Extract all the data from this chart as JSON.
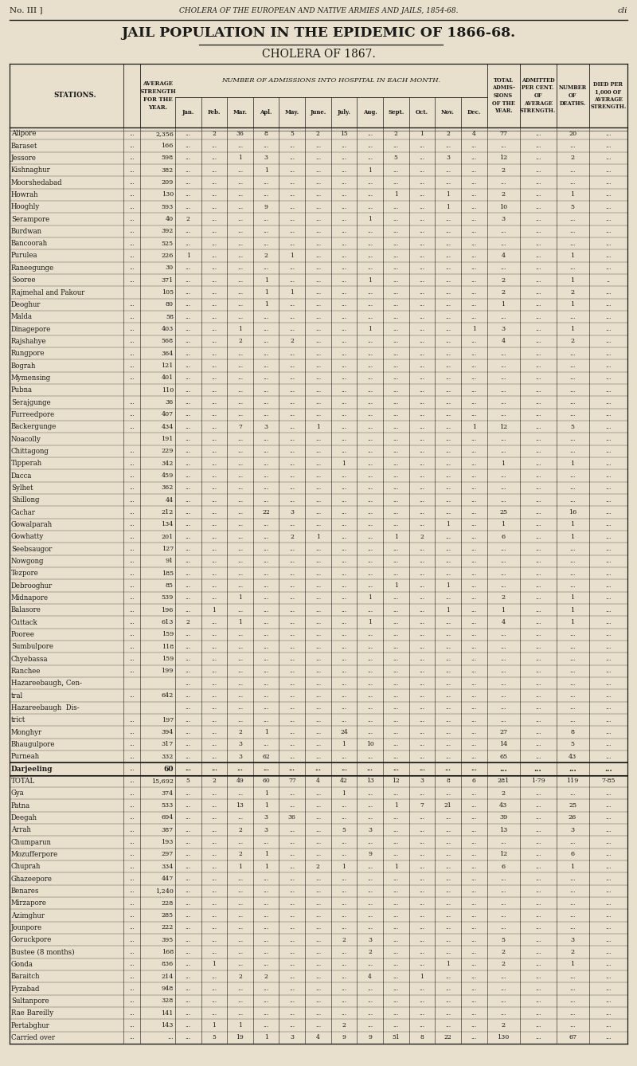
{
  "page_header_left": "No. III ]",
  "page_header_center": "CHOLERA OF THE EUROPEAN AND NATIVE ARMIES AND JAILS, 1854-68.",
  "page_header_right": "cli",
  "main_title": "JAIL POPULATION IN THE EPIDEMIC OF 1866-68.",
  "sub_title": "CHOLERA OF 1867.",
  "months": [
    "Jan.",
    "Feb.",
    "Mar.",
    "Apl.",
    "May.",
    "June.",
    "July.",
    "Aug.",
    "Sept.",
    "Oct.",
    "Nov.",
    "Dec."
  ],
  "rows": [
    [
      "Alipore",
      "...",
      "2,356",
      "...",
      "2",
      "36",
      "8",
      "5",
      "2",
      "15",
      "...",
      "2",
      "1",
      "2",
      "4",
      "77",
      "...",
      "20",
      "..."
    ],
    [
      "Baraset",
      "...",
      "166",
      "...",
      "...",
      "...",
      "...",
      "...",
      "...",
      "...",
      "...",
      "...",
      "...",
      "...",
      "...",
      "...",
      "...",
      "...",
      "..."
    ],
    [
      "Jessore",
      "...",
      "598",
      "...",
      "...",
      "1",
      "3",
      "...",
      "...",
      "...",
      "...",
      "5",
      "...",
      "3",
      "...",
      "12",
      "...",
      "2",
      "..."
    ],
    [
      "Kishnaghur",
      "...",
      "382",
      "...",
      "...",
      "...",
      "1",
      "...",
      "...",
      "...",
      "1",
      "...",
      "...",
      "...",
      "...",
      "2",
      "...",
      "...",
      "..."
    ],
    [
      "Moorshedabad",
      "...",
      "209",
      "...",
      "...",
      "...",
      "...",
      "...",
      "...",
      "...",
      "...",
      "...",
      "...",
      "...",
      "...",
      "...",
      "...",
      "...",
      "..."
    ],
    [
      "Howrah",
      "...",
      "130",
      "...",
      "...",
      "...",
      "...",
      "...",
      "...",
      "...",
      "...",
      "1",
      "...",
      "1",
      "...",
      "2",
      "...",
      "1",
      "..."
    ],
    [
      "Hooghly",
      "...",
      "593",
      "...",
      "...",
      "...",
      "9",
      "...",
      "...",
      "...",
      "...",
      "...",
      "...",
      "1",
      "...",
      "10",
      "...",
      "5",
      "..."
    ],
    [
      "Serampore",
      "...",
      "40",
      "2",
      "...",
      "...",
      "...",
      "...",
      "...",
      "...",
      "1",
      "...",
      "...",
      "...",
      "...",
      "3",
      "...",
      "...",
      "..."
    ],
    [
      "Burdwan",
      "...",
      "392",
      "...",
      "...",
      "...",
      "...",
      "...",
      "...",
      "...",
      "...",
      "...",
      "...",
      "...",
      "...",
      "...",
      "...",
      "...",
      "..."
    ],
    [
      "Bancoorah",
      "...",
      "525",
      "...",
      "...",
      "...",
      "...",
      "...",
      "...",
      "...",
      "...",
      "...",
      "...",
      "...",
      "...",
      "...",
      "...",
      "...",
      "..."
    ],
    [
      "Purulea",
      "...",
      "226",
      "1",
      "...",
      "...",
      "2",
      "1",
      "...",
      "...",
      "...",
      "...",
      "...",
      "...",
      "...",
      "4",
      "...",
      "1",
      "..."
    ],
    [
      "Raneegunge",
      "...",
      "30",
      "...",
      "...",
      "...",
      "...",
      "...",
      "...",
      "...",
      "...",
      "...",
      "...",
      "...",
      "...",
      "...",
      "...",
      "...",
      "..."
    ],
    [
      "Sooree",
      "...",
      "371",
      "...",
      "...",
      "...",
      "1",
      "...",
      "...",
      "...",
      "1",
      "...",
      "...",
      "...",
      "...",
      "2",
      "...",
      "1",
      ".."
    ],
    [
      "Rajmehal and Pakour",
      "",
      "105",
      "...",
      "...",
      "...",
      "1",
      "1",
      "...",
      "...",
      "...",
      "...",
      "...",
      "...",
      "...",
      "2",
      "...",
      "2",
      "..."
    ],
    [
      "Deoghur",
      "...",
      "80",
      "...",
      "...",
      "...",
      "1",
      "...",
      "...",
      "...",
      "...",
      "...",
      "...",
      "...",
      "...",
      "1",
      "...",
      "1",
      "..."
    ],
    [
      "Malda",
      "...",
      "58",
      "...",
      "...",
      "...",
      "...",
      "...",
      "...",
      "...",
      "...",
      "...",
      "...",
      "...",
      "...",
      "...",
      "...",
      "...",
      "..."
    ],
    [
      "Dinagepore",
      "...",
      "403",
      "...",
      "...",
      "1",
      "...",
      "...",
      "...",
      "...",
      "1",
      "...",
      "...",
      "...",
      "1",
      "3",
      "...",
      "1",
      "..."
    ],
    [
      "Rajshahye",
      "...",
      "568",
      "...",
      "...",
      "2",
      "...",
      "2",
      "...",
      "...",
      "...",
      "...",
      "...",
      "...",
      "...",
      "4",
      "...",
      "2",
      "..."
    ],
    [
      "Rungpore",
      "...",
      "364",
      "...",
      "...",
      "...",
      "...",
      "...",
      "...",
      "...",
      "...",
      "...",
      "...",
      "...",
      "...",
      "...",
      "...",
      "...",
      "..."
    ],
    [
      "Bograh",
      "...",
      "121",
      "...",
      "...",
      "...",
      "...",
      "...",
      "...",
      "...",
      "...",
      "...",
      "...",
      "...",
      "...",
      "...",
      "...",
      "...",
      "..."
    ],
    [
      "Mymensing",
      "...",
      "401",
      "...",
      "...",
      "...",
      "...",
      "...",
      "...",
      "...",
      "...",
      "...",
      "...",
      "...",
      "...",
      "...",
      "...",
      "...",
      "..."
    ],
    [
      "Pubna",
      "",
      "110",
      "...",
      "...",
      "...",
      "...",
      "...",
      "...",
      "...",
      "...",
      "...",
      "...",
      "...",
      "...",
      "...",
      "...",
      "...",
      "..."
    ],
    [
      "Serajgunge",
      "...",
      "36",
      "...",
      "...",
      "...",
      "...",
      "...",
      "...",
      "...",
      "...",
      "...",
      "...",
      "...",
      "...",
      "...",
      "...",
      "...",
      "..."
    ],
    [
      "Furreedpore",
      "...",
      "407",
      "...",
      "...",
      "...",
      "...",
      "...",
      "...",
      "...",
      "...",
      "...",
      "...",
      "...",
      "...",
      "...",
      "...",
      "...",
      "..."
    ],
    [
      "Backergunge",
      "...",
      "434",
      "...",
      "...",
      "7",
      "3",
      "...",
      "1",
      "...",
      "...",
      "...",
      "...",
      "...",
      "1",
      "12",
      "...",
      "5",
      "..."
    ],
    [
      "Noacolly",
      "",
      "191",
      "...",
      "...",
      "...",
      "...",
      "...",
      "...",
      "...",
      "...",
      "...",
      "...",
      "...",
      "...",
      "...",
      "...",
      "...",
      "..."
    ],
    [
      "Chittagong",
      "...",
      "229",
      "...",
      "...",
      "...",
      "...",
      "...",
      "...",
      "...",
      "...",
      "...",
      "...",
      "...",
      "...",
      "...",
      "...",
      "...",
      "..."
    ],
    [
      "Tipperah",
      "...",
      "342",
      "...",
      "...",
      "...",
      "...",
      "...",
      "...",
      "1",
      "...",
      "...",
      "...",
      "...",
      "...",
      "1",
      "...",
      "1",
      "..."
    ],
    [
      "Dacca",
      "...",
      "459",
      "...",
      "...",
      "...",
      "...",
      "...",
      "...",
      "...",
      "...",
      "...",
      "...",
      "...",
      "...",
      "...",
      "...",
      "...",
      "..."
    ],
    [
      "Sylhet",
      "...",
      "362",
      "...",
      "...",
      "...",
      "...",
      "...",
      "...",
      "...",
      "...",
      "...",
      "...",
      "...",
      "...",
      "...",
      "...",
      "...",
      "..."
    ],
    [
      "Shillong",
      "...",
      "44",
      "...",
      "...",
      "...",
      "...",
      "...",
      "...",
      "...",
      "...",
      "...",
      "...",
      "...",
      "...",
      "...",
      "...",
      "...",
      "..."
    ],
    [
      "Cachar",
      "...",
      "212",
      "...",
      "...",
      "...",
      "22",
      "3",
      "...",
      "...",
      "...",
      "...",
      "...",
      "...",
      "...",
      "25",
      "...",
      "16",
      "..."
    ],
    [
      "Gowalparah",
      "...",
      "134",
      "...",
      "...",
      "...",
      "...",
      "...",
      "...",
      "...",
      "...",
      "...",
      "...",
      "1",
      "...",
      "1",
      "...",
      "1",
      "..."
    ],
    [
      "Gowhatty",
      "...",
      "201",
      "...",
      "...",
      "...",
      "...",
      "2",
      "1",
      "...",
      "...",
      "1",
      "2",
      "...",
      "...",
      "6",
      "...",
      "1",
      "..."
    ],
    [
      "Seebsaugor",
      "...",
      "127",
      "...",
      "...",
      "...",
      "...",
      "...",
      "...",
      "...",
      "...",
      "...",
      "...",
      "...",
      "...",
      "...",
      "...",
      "...",
      "..."
    ],
    [
      "Nowgong",
      "...",
      "91",
      "...",
      "...",
      "...",
      "...",
      "...",
      "...",
      "...",
      "...",
      "...",
      "...",
      "...",
      "...",
      "...",
      "...",
      "...",
      "..."
    ],
    [
      "Tezpore",
      "...",
      "185",
      "...",
      "...",
      "...",
      "...",
      "...",
      "...",
      "...",
      "...",
      "...",
      "...",
      "...",
      "...",
      "...",
      "...",
      "...",
      "..."
    ],
    [
      "Debrooghur",
      "...",
      "85",
      "...",
      "...",
      "...",
      "...",
      "...",
      "...",
      "...",
      "...",
      "1",
      "...",
      "1",
      "...",
      "...",
      "...",
      "...",
      "..."
    ],
    [
      "Midnapore",
      "...",
      "539",
      "...",
      "...",
      "1",
      "...",
      "...",
      "...",
      "...",
      "1",
      "...",
      "...",
      "...",
      "...",
      "2",
      "...",
      "1",
      "..."
    ],
    [
      "Balasore",
      "...",
      "196",
      "...",
      "1",
      "...",
      "...",
      "...",
      "...",
      "...",
      "...",
      "...",
      "...",
      "1",
      "...",
      "1",
      "...",
      "1",
      "..."
    ],
    [
      "Cuttack",
      "...",
      "613",
      "2",
      "...",
      "1",
      "...",
      "...",
      "...",
      "...",
      "1",
      "...",
      "...",
      "...",
      "...",
      "4",
      "...",
      "1",
      "..."
    ],
    [
      "Pooree",
      "...",
      "159",
      "...",
      "...",
      "...",
      "...",
      "...",
      "...",
      "...",
      "...",
      "...",
      "...",
      "...",
      "...",
      "...",
      "...",
      "...",
      "..."
    ],
    [
      "Sumbulpore",
      "...",
      "118",
      "...",
      "...",
      "...",
      "...",
      "...",
      "...",
      "...",
      "...",
      "...",
      "...",
      "...",
      "...",
      "...",
      "...",
      "...",
      "..."
    ],
    [
      "Chyebassa",
      "...",
      "159",
      "...",
      "...",
      "...",
      "...",
      "...",
      "...",
      "...",
      "...",
      "...",
      "...",
      "...",
      "...",
      "...",
      "...",
      "...",
      "..."
    ],
    [
      "Ranchee",
      "...",
      "199",
      "...",
      "...",
      "...",
      "...",
      "...",
      "...",
      "...",
      "...",
      "...",
      "...",
      "...",
      "...",
      "...",
      "...",
      "...",
      "..."
    ],
    [
      "Hazareebaugh, Cen-",
      "",
      "",
      "...",
      "...",
      "...",
      "...",
      "...",
      "...",
      "...",
      "...",
      "...",
      "...",
      "...",
      "...",
      "...",
      "...",
      "...",
      "..."
    ],
    [
      "tral",
      "...",
      "642",
      "...",
      "...",
      "...",
      "...",
      "...",
      "...",
      "...",
      "...",
      "...",
      "...",
      "...",
      "...",
      "...",
      "...",
      "...",
      "..."
    ],
    [
      "Hazareebaugh  Dis-",
      "",
      "",
      "...",
      "...",
      "...",
      "...",
      "...",
      "...",
      "...",
      "...",
      "...",
      "...",
      "...",
      "...",
      "...",
      "...",
      "...",
      "..."
    ],
    [
      "trict",
      "...",
      "197",
      "...",
      "...",
      "...",
      "...",
      "...",
      "...",
      "...",
      "...",
      "...",
      "...",
      "...",
      "...",
      "...",
      "...",
      "...",
      "..."
    ],
    [
      "Monghyr",
      "...",
      "394",
      "...",
      "...",
      "2",
      "1",
      "...",
      "...",
      "24",
      "...",
      "...",
      "...",
      "...",
      "...",
      "27",
      "...",
      "8",
      "..."
    ],
    [
      "Bhaugulpore",
      "...",
      "317",
      "...",
      "...",
      "3",
      "...",
      "...",
      "...",
      "1",
      "10",
      "...",
      "...",
      "...",
      "...",
      "14",
      "...",
      "5",
      "..."
    ],
    [
      "Purneah",
      "...",
      "332",
      "...",
      "...",
      "3",
      "62",
      "...",
      "...",
      "...",
      "...",
      "...",
      "...",
      "...",
      "...",
      "65",
      "...",
      "43",
      "..."
    ],
    [
      "Darjeeling",
      "...",
      "60",
      "...",
      "...",
      "...",
      "...",
      "...",
      "...",
      "...",
      "...",
      "...",
      "...",
      "...",
      "...",
      "...",
      "...",
      "...",
      "..."
    ],
    [
      "TOTAL",
      "...",
      "15,692",
      "5",
      "2",
      "49",
      "60",
      "77",
      "4",
      "42",
      "13",
      "12",
      "3",
      "8",
      "6",
      "281",
      "1·79",
      "119",
      "7·85"
    ],
    [
      "Gya",
      "...",
      "374",
      "...",
      "...",
      "...",
      "1",
      "...",
      "...",
      "1",
      "...",
      "...",
      "...",
      "...",
      "...",
      "2",
      "...",
      "...",
      "..."
    ],
    [
      "Patna",
      "...",
      "533",
      "...",
      "...",
      "13",
      "1",
      "...",
      "...",
      "...",
      "...",
      "1",
      "7",
      "21",
      "...",
      "43",
      "...",
      "25",
      "..."
    ],
    [
      "Deegah",
      "...",
      "694",
      "...",
      "...",
      "...",
      "3",
      "36",
      "...",
      "...",
      "...",
      "...",
      "...",
      "...",
      "...",
      "39",
      "...",
      "26",
      "..."
    ],
    [
      "Arrah",
      "...",
      "387",
      "...",
      "...",
      "2",
      "3",
      "...",
      "...",
      "5",
      "3",
      "...",
      "...",
      "...",
      "...",
      "13",
      "...",
      "3",
      "..."
    ],
    [
      "Chumparun",
      "...",
      "193",
      "...",
      "...",
      "...",
      "...",
      "...",
      "...",
      "...",
      "...",
      "...",
      "...",
      "...",
      "...",
      "...",
      "...",
      "...",
      "..."
    ],
    [
      "Mozufferpore",
      "...",
      "297",
      "...",
      "...",
      "2",
      "1",
      "...",
      "...",
      "...",
      "9",
      "...",
      "...",
      "...",
      "...",
      "12",
      "...",
      "6",
      "..."
    ],
    [
      "Chuprah",
      "...",
      "334",
      "...",
      "...",
      "1",
      "1",
      "...",
      "2",
      "1",
      "...",
      "1",
      "...",
      "...",
      "...",
      "6",
      "...",
      "1",
      "..."
    ],
    [
      "Ghazeepore",
      "...",
      "447",
      "...",
      "...",
      "...",
      "...",
      "...",
      "...",
      "...",
      "...",
      "...",
      "...",
      "...",
      "...",
      "...",
      "...",
      "...",
      "..."
    ],
    [
      "Benares",
      "...",
      "1,240",
      "...",
      "...",
      "...",
      "...",
      "...",
      "...",
      "...",
      "...",
      "...",
      "...",
      "...",
      "...",
      "...",
      "...",
      "...",
      "..."
    ],
    [
      "Mirzapore",
      "...",
      "228",
      "...",
      "...",
      "...",
      "...",
      "...",
      "...",
      "...",
      "...",
      "...",
      "...",
      "...",
      "...",
      "...",
      "...",
      "...",
      "..."
    ],
    [
      "Azimghur",
      "...",
      "285",
      "...",
      "...",
      "...",
      "...",
      "...",
      "...",
      "...",
      "...",
      "...",
      "...",
      "...",
      "...",
      "...",
      "...",
      "...",
      "..."
    ],
    [
      "Jounpore",
      "...",
      "222",
      "...",
      "...",
      "...",
      "...",
      "...",
      "...",
      "...",
      "...",
      "...",
      "...",
      "...",
      "...",
      "...",
      "...",
      "...",
      "..."
    ],
    [
      "Goruckpore",
      "...",
      "395",
      "...",
      "...",
      "...",
      "...",
      "...",
      "...",
      "2",
      "3",
      "...",
      "...",
      "...",
      "...",
      "5",
      "...",
      "3",
      "..."
    ],
    [
      "Bustee (8 months)",
      "...",
      "168",
      "...",
      "...",
      "...",
      "...",
      "...",
      "...",
      "...",
      "2",
      "...",
      "...",
      "...",
      "...",
      "2",
      "...",
      "2",
      "..."
    ],
    [
      "Gonda",
      "...",
      "836",
      "...",
      "1",
      "...",
      "...",
      "...",
      "...",
      "...",
      "...",
      "...",
      "...",
      "1",
      "...",
      "2",
      "...",
      "1",
      "..."
    ],
    [
      "Baraitch",
      "...",
      "214",
      "...",
      "...",
      "2",
      "2",
      "...",
      "...",
      "...",
      "4",
      "...",
      "1",
      "...",
      "...",
      "...",
      "...",
      "...",
      "..."
    ],
    [
      "Fyzabad",
      "...",
      "948",
      "...",
      "...",
      "...",
      "...",
      "...",
      "...",
      "...",
      "...",
      "...",
      "...",
      "...",
      "...",
      "...",
      "...",
      "...",
      "..."
    ],
    [
      "Sultanpore",
      "...",
      "328",
      "...",
      "...",
      "...",
      "...",
      "...",
      "...",
      "...",
      "...",
      "...",
      "...",
      "...",
      "...",
      "...",
      "...",
      "...",
      "..."
    ],
    [
      "Rae Bareilly",
      "...",
      "141",
      "...",
      "...",
      "...",
      "...",
      "...",
      "...",
      "...",
      "...",
      "...",
      "...",
      "...",
      "...",
      "...",
      "...",
      "...",
      "..."
    ],
    [
      "Pertabghur",
      "...",
      "143",
      "...",
      "1",
      "1",
      "...",
      "...",
      "...",
      "2",
      "...",
      "...",
      "...",
      "...",
      "...",
      "2",
      "...",
      "...",
      "..."
    ],
    [
      "Carried over",
      "...",
      "...",
      "...",
      "5",
      "19",
      "1",
      "3",
      "4",
      "9",
      "9",
      "51",
      "8",
      "22",
      "...",
      "130",
      "...",
      "67",
      "..."
    ]
  ],
  "bg_color": "#e8e0cc",
  "text_color": "#1a1a1a",
  "total_row_idx": 52
}
